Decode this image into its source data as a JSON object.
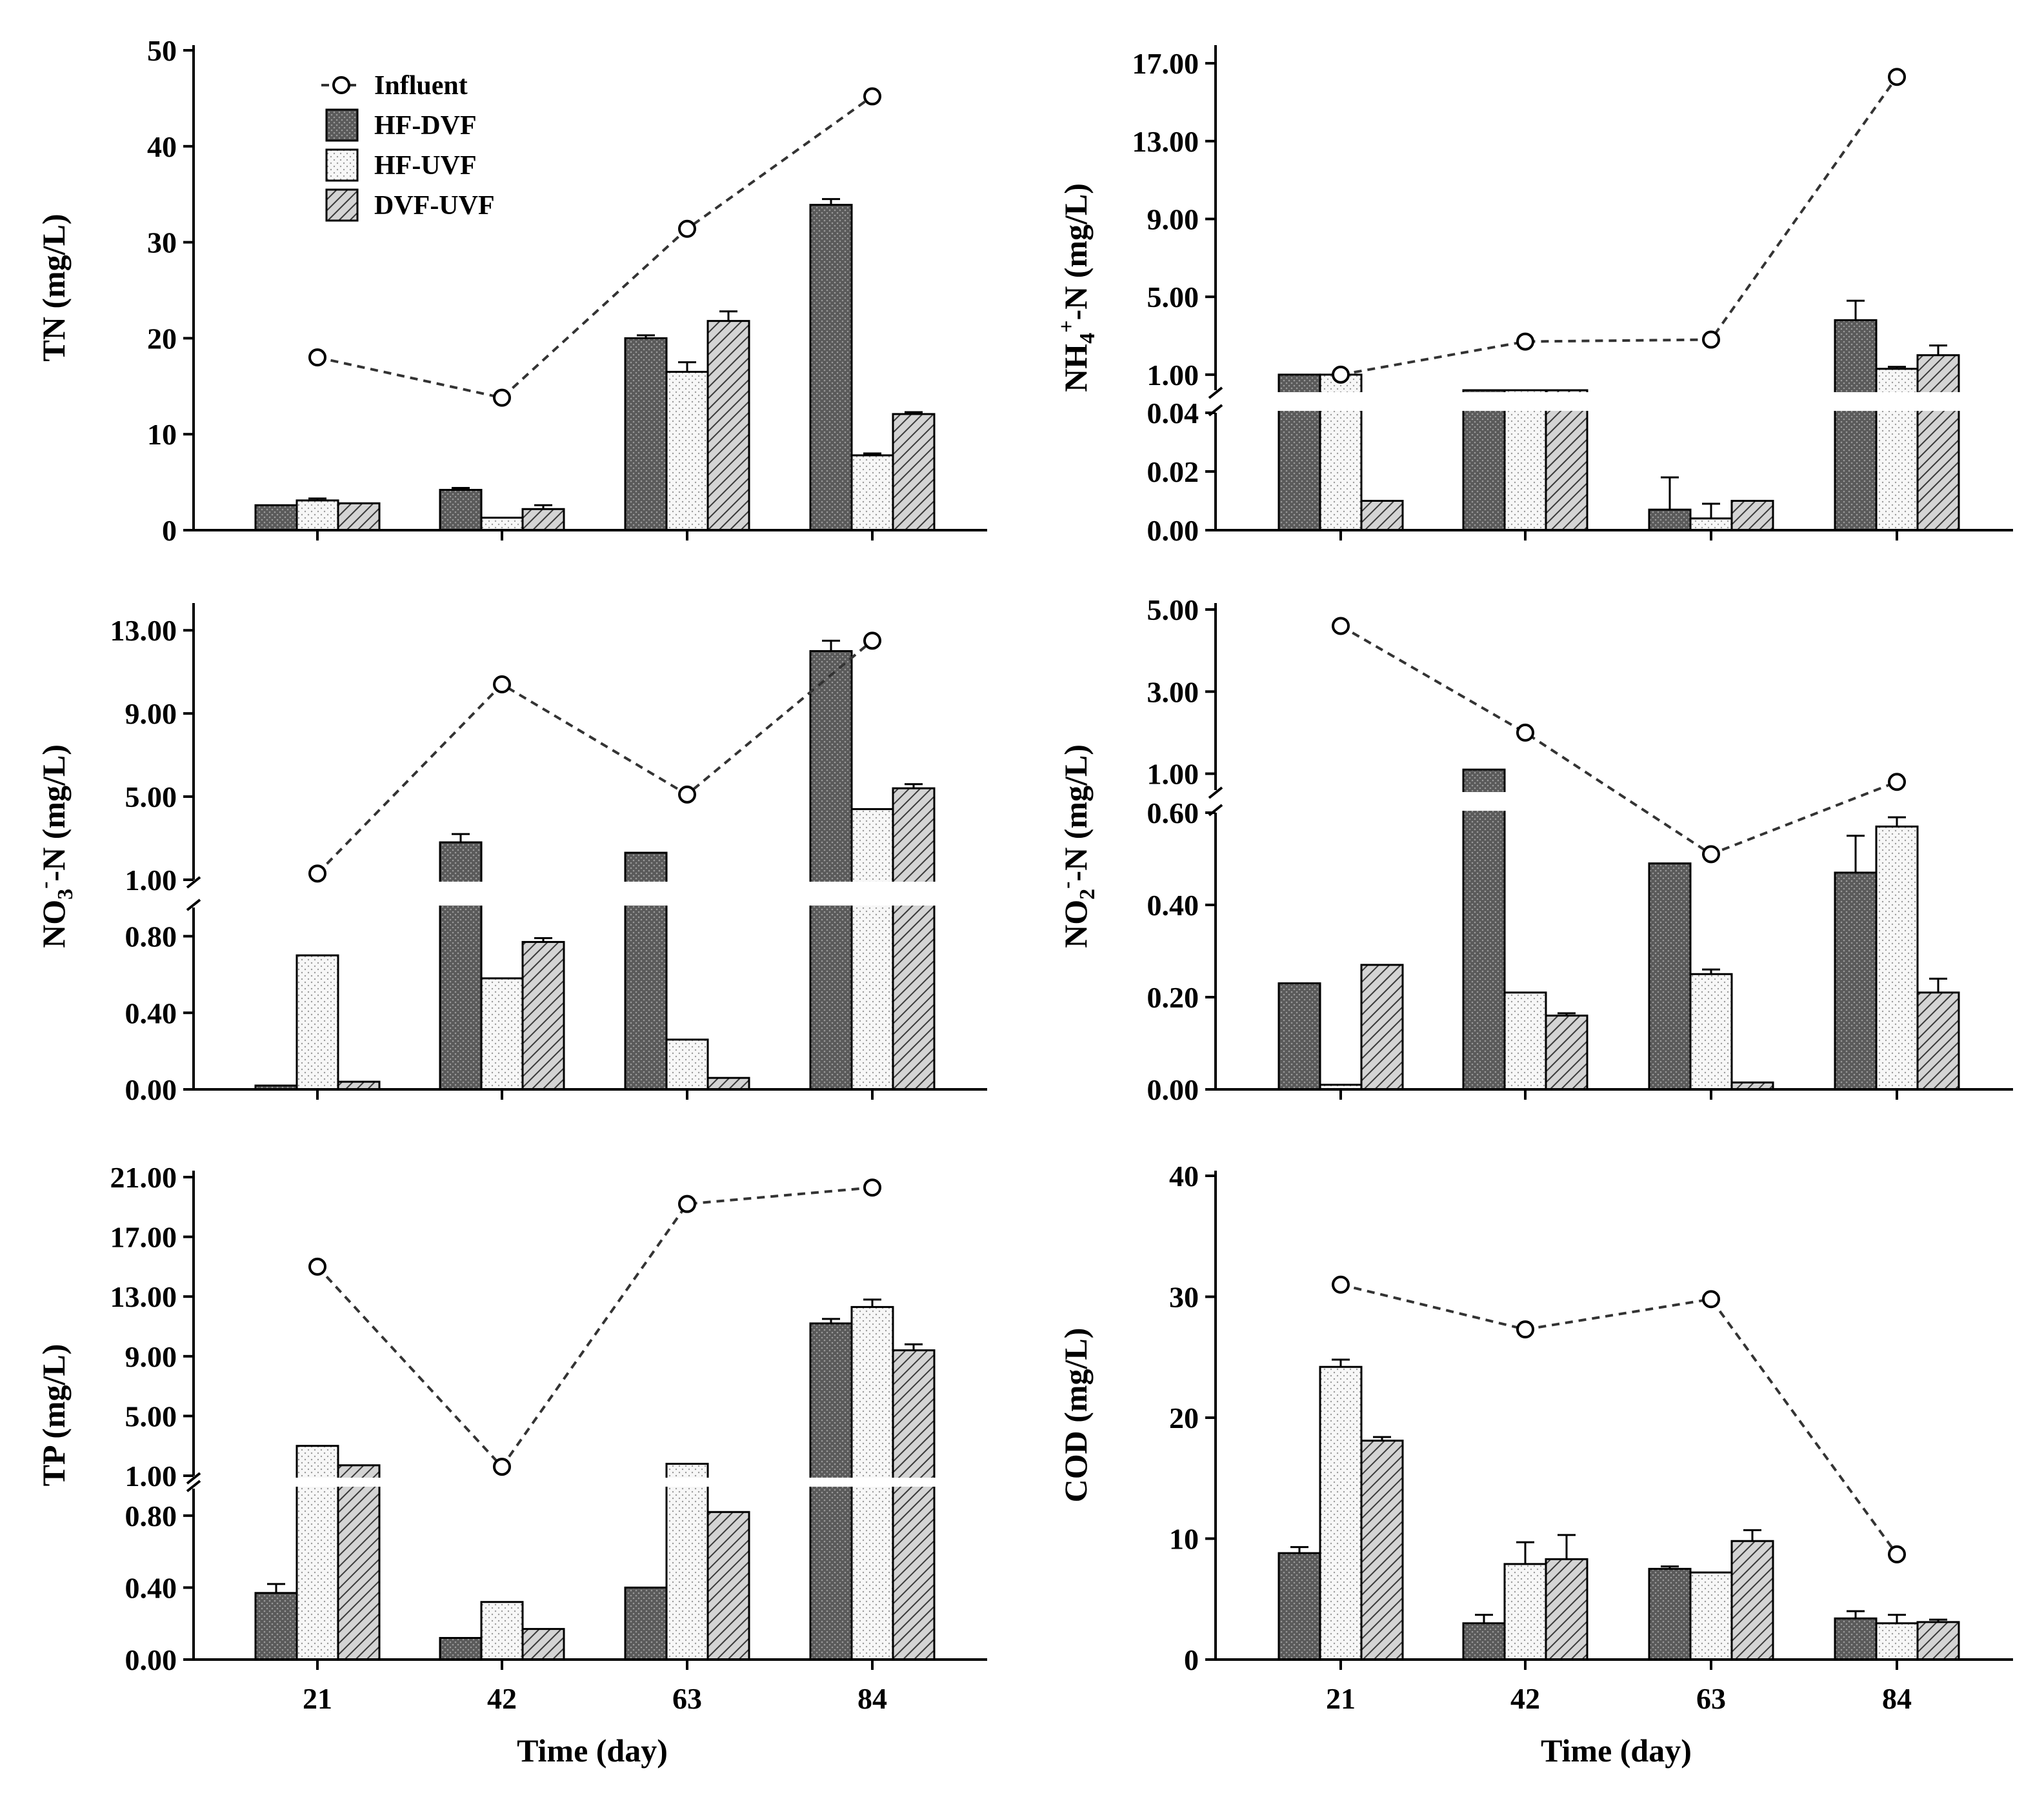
{
  "legend": {
    "items": [
      {
        "key": "influent",
        "label": "Influent"
      },
      {
        "key": "hf_dvf",
        "label": "HF-DVF"
      },
      {
        "key": "hf_uvf",
        "label": "HF-UVF"
      },
      {
        "key": "dvf_uvf",
        "label": "DVF-UVF"
      }
    ]
  },
  "colors": {
    "hf_dvf": "#6a6a6a",
    "hf_uvf": "#f2f2f2",
    "dvf_uvf": "#bdbdbd",
    "axis": "#000000",
    "influent_line": "#333333"
  },
  "xlabel": "Time (day)",
  "chart_data": [
    {
      "id": "tn",
      "type": "bar",
      "ylabel": "TN (mg/L)",
      "categories": [
        "21",
        "42",
        "63",
        "84"
      ],
      "ticks": [
        "0",
        "10",
        "20",
        "30",
        "40",
        "50"
      ],
      "tick_values": [
        0,
        10,
        20,
        30,
        40,
        50
      ],
      "ylim": [
        0,
        50
      ],
      "broken": false,
      "series": [
        {
          "name": "HF-DVF",
          "values": [
            2.6,
            4.2,
            20.0,
            33.9
          ],
          "errors": [
            0,
            0.2,
            0.3,
            0.6
          ]
        },
        {
          "name": "HF-UVF",
          "values": [
            3.1,
            1.3,
            16.5,
            7.8
          ],
          "errors": [
            0.2,
            0,
            1.0,
            0.2
          ]
        },
        {
          "name": "DVF-UVF",
          "values": [
            2.8,
            2.2,
            21.8,
            12.1
          ],
          "errors": [
            0,
            0.4,
            1.0,
            0.2
          ]
        },
        {
          "name": "Influent",
          "kind": "line",
          "values": [
            18.0,
            13.8,
            31.4,
            45.2
          ]
        }
      ]
    },
    {
      "id": "nh4",
      "type": "bar",
      "ylabel_main": "NH",
      "ylabel_sub": "4",
      "ylabel_sup": "+",
      "ylabel_rest": "-N (mg/L)",
      "categories": [
        "21",
        "42",
        "63",
        "84"
      ],
      "broken": true,
      "lower": {
        "ticks": [
          "0.00",
          "0.02",
          "0.04"
        ],
        "tick_values": [
          0,
          0.02,
          0.04
        ],
        "ylim": [
          0,
          0.04
        ]
      },
      "upper": {
        "ticks": [
          "1.00",
          "5.00",
          "9.00",
          "13.00",
          "17.00"
        ],
        "tick_values": [
          1,
          5,
          9,
          13,
          17
        ],
        "ylim": [
          0.2,
          17.6
        ]
      },
      "series": [
        {
          "name": "HF-DVF",
          "values": [
            1.0,
            0.2,
            0.007,
            3.8
          ],
          "errors": [
            0,
            0,
            0.011,
            1.0
          ]
        },
        {
          "name": "HF-UVF",
          "values": [
            1.0,
            0.2,
            0.004,
            1.3
          ],
          "errors": [
            0,
            0,
            0.005,
            0.1
          ]
        },
        {
          "name": "DVF-UVF",
          "values": [
            0.01,
            0.2,
            0.01,
            2.0
          ],
          "errors": [
            0,
            0,
            0,
            0.5
          ]
        },
        {
          "name": "Influent",
          "kind": "line",
          "values": [
            1.0,
            2.7,
            2.8,
            16.3
          ]
        }
      ]
    },
    {
      "id": "no3",
      "type": "bar",
      "ylabel_main": "NO",
      "ylabel_sub": "3",
      "ylabel_sup": "-",
      "ylabel_rest": "-N (mg/L)",
      "categories": [
        "21",
        "42",
        "63",
        "84"
      ],
      "broken": true,
      "lower": {
        "ticks": [
          "0.00",
          "0.40",
          "0.80"
        ],
        "tick_values": [
          0,
          0.4,
          0.8
        ],
        "ylim": [
          0,
          0.95
        ]
      },
      "upper": {
        "ticks": [
          "1.00",
          "5.00",
          "9.00",
          "13.00"
        ],
        "tick_values": [
          1,
          5,
          9,
          13
        ],
        "ylim": [
          1,
          14
        ]
      },
      "series": [
        {
          "name": "HF-DVF",
          "values": [
            0.02,
            2.8,
            2.3,
            12.0
          ],
          "errors": [
            0,
            0.4,
            0,
            0.5
          ]
        },
        {
          "name": "HF-UVF",
          "values": [
            0.7,
            0.58,
            0.26,
            4.4
          ],
          "errors": [
            0,
            0,
            0,
            0
          ]
        },
        {
          "name": "DVF-UVF",
          "values": [
            0.04,
            0.77,
            0.06,
            5.4
          ],
          "errors": [
            0,
            0.02,
            0,
            0.2
          ]
        },
        {
          "name": "Influent",
          "kind": "line",
          "values": [
            1.3,
            10.4,
            5.1,
            12.5
          ]
        }
      ]
    },
    {
      "id": "no2",
      "type": "bar",
      "ylabel_main": "NO",
      "ylabel_sub": "2",
      "ylabel_sup": "-",
      "ylabel_rest": "-N (mg/L)",
      "categories": [
        "21",
        "42",
        "63",
        "84"
      ],
      "broken": true,
      "lower": {
        "ticks": [
          "0.00",
          "0.20",
          "0.40",
          "0.60"
        ],
        "tick_values": [
          0,
          0.2,
          0.4,
          0.6
        ],
        "ylim": [
          0,
          0.6
        ]
      },
      "upper": {
        "ticks": [
          "1.00",
          "3.00",
          "5.00"
        ],
        "tick_values": [
          1,
          3,
          5
        ],
        "ylim": [
          0.6,
          5.0
        ]
      },
      "series": [
        {
          "name": "HF-DVF",
          "values": [
            0.23,
            1.1,
            0.49,
            0.47
          ],
          "errors": [
            0,
            0,
            0,
            0.08
          ]
        },
        {
          "name": "HF-UVF",
          "values": [
            0.01,
            0.21,
            0.25,
            0.57
          ],
          "errors": [
            0,
            0,
            0.01,
            0.02
          ]
        },
        {
          "name": "DVF-UVF",
          "values": [
            0.27,
            0.16,
            0.015,
            0.21
          ],
          "errors": [
            0,
            0.005,
            0,
            0.03
          ]
        },
        {
          "name": "Influent",
          "kind": "line",
          "values": [
            4.6,
            2.0,
            0.51,
            0.8
          ]
        }
      ]
    },
    {
      "id": "tp",
      "type": "bar",
      "ylabel": "TP (mg/L)",
      "categories": [
        "21",
        "42",
        "63",
        "84"
      ],
      "broken": true,
      "lower": {
        "ticks": [
          "0.00",
          "0.40",
          "0.80"
        ],
        "tick_values": [
          0,
          0.4,
          0.8
        ],
        "ylim": [
          0,
          0.95
        ]
      },
      "upper": {
        "ticks": [
          "1.00",
          "5.00",
          "9.00",
          "13.00",
          "17.00",
          "21.00"
        ],
        "tick_values": [
          1,
          5,
          9,
          13,
          17,
          21
        ],
        "ylim": [
          1,
          21
        ]
      },
      "series": [
        {
          "name": "HF-DVF",
          "values": [
            0.37,
            0.12,
            0.4,
            11.2
          ],
          "errors": [
            0.05,
            0,
            0,
            0.3
          ]
        },
        {
          "name": "HF-UVF",
          "values": [
            3.0,
            0.32,
            1.8,
            12.3
          ],
          "errors": [
            0,
            0,
            0,
            0.5
          ]
        },
        {
          "name": "DVF-UVF",
          "values": [
            1.7,
            0.17,
            0.82,
            9.4
          ],
          "errors": [
            0,
            0,
            0,
            0.4
          ]
        },
        {
          "name": "Influent",
          "kind": "line",
          "values": [
            15.0,
            1.6,
            19.2,
            20.3
          ]
        }
      ]
    },
    {
      "id": "cod",
      "type": "bar",
      "ylabel": "COD (mg/L)",
      "categories": [
        "21",
        "42",
        "63",
        "84"
      ],
      "ticks": [
        "0",
        "10",
        "20",
        "30",
        "40"
      ],
      "tick_values": [
        0,
        10,
        20,
        30,
        40
      ],
      "ylim": [
        0,
        40
      ],
      "broken": false,
      "series": [
        {
          "name": "HF-DVF",
          "values": [
            8.8,
            3.0,
            7.5,
            3.4
          ],
          "errors": [
            0.5,
            0.7,
            0.2,
            0.6
          ]
        },
        {
          "name": "HF-UVF",
          "values": [
            24.2,
            7.9,
            7.2,
            3.0
          ],
          "errors": [
            0.6,
            1.8,
            0,
            0.7
          ]
        },
        {
          "name": "DVF-UVF",
          "values": [
            18.1,
            8.3,
            9.8,
            3.1
          ],
          "errors": [
            0.3,
            2.0,
            0.9,
            0.2
          ]
        },
        {
          "name": "Influent",
          "kind": "line",
          "values": [
            31.0,
            27.3,
            29.8,
            8.7
          ]
        }
      ]
    }
  ]
}
